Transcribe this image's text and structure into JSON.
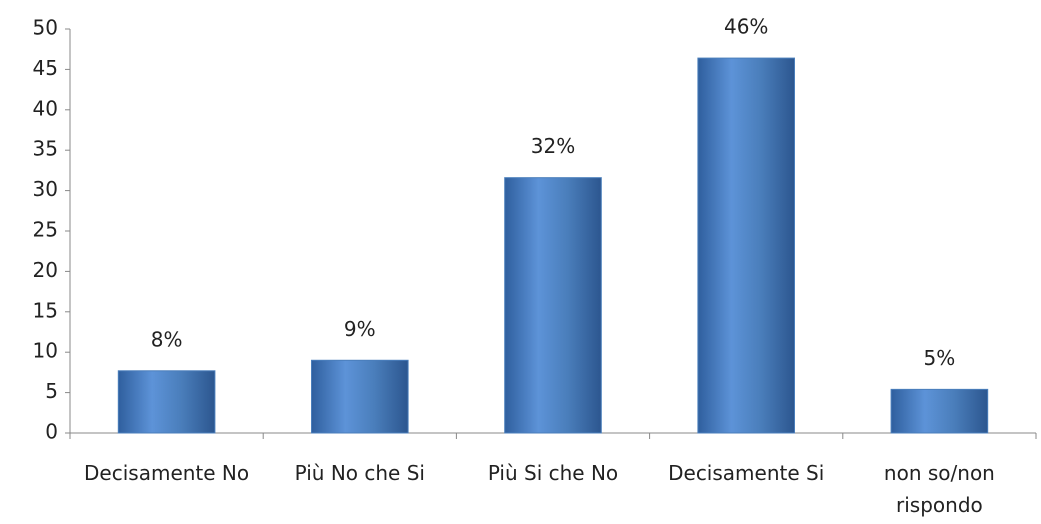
{
  "chart_data": {
    "type": "bar",
    "categories": [
      "Decisamente No",
      "Più No che Si",
      "Più Si che No",
      "Decisamente Si",
      "non so/non rispondo"
    ],
    "values": [
      7.7,
      9.0,
      31.6,
      46.4,
      5.4
    ],
    "value_labels": [
      "8%",
      "9%",
      "32%",
      "46%",
      "5%"
    ],
    "color": "#4a7ebb",
    "ylim": [
      0,
      50
    ],
    "yticks": [
      0,
      5,
      10,
      15,
      20,
      25,
      30,
      35,
      40,
      45,
      50
    ],
    "grid": false
  }
}
